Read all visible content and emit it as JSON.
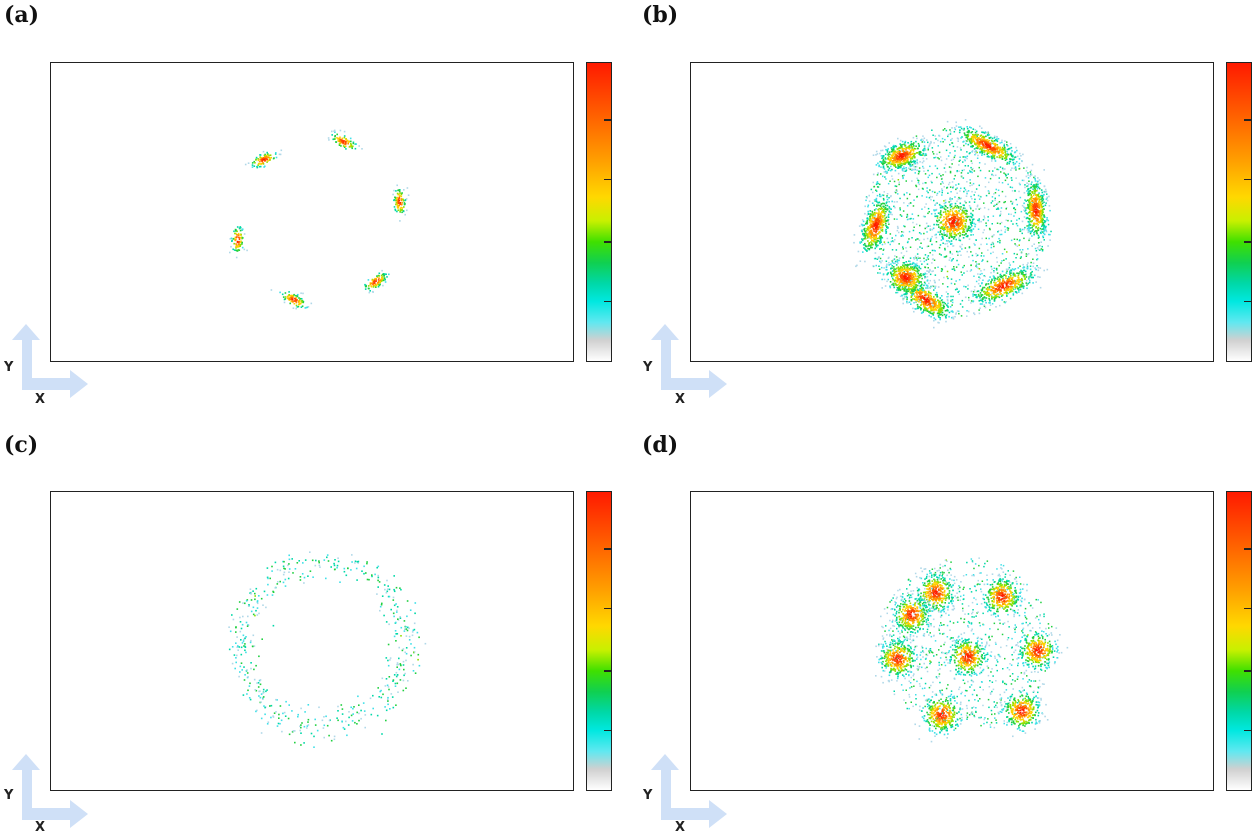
{
  "panels": [
    {
      "label": "(a)",
      "axis_y": "Y",
      "axis_x": "X"
    },
    {
      "label": "(b)",
      "axis_y": "Y",
      "axis_x": "X"
    },
    {
      "label": "(c)",
      "axis_y": "Y",
      "axis_x": "X"
    },
    {
      "label": "(d)",
      "axis_y": "Y",
      "axis_x": "X"
    }
  ],
  "colors": {
    "colorbar_stops": [
      "#ff1a00",
      "#ff6a00",
      "#ffa000",
      "#ffd800",
      "#40e000",
      "#00d8a8",
      "#00e8e0",
      "#d0d0d0",
      "#ffffff"
    ],
    "axes_arrow": "#cfe0f7"
  },
  "chart_data": [
    {
      "type": "heatmap",
      "panel": "(a)",
      "title": "",
      "xlabel": "X",
      "ylabel": "Y",
      "pattern": "ring of 6 compact density clusters",
      "cluster_count": 6,
      "colorbar": true
    },
    {
      "type": "heatmap",
      "panel": "(b)",
      "title": "",
      "xlabel": "X",
      "ylabel": "Y",
      "pattern": "ring of 7 high-density elongated clusters with central cluster and diffuse background",
      "cluster_count": 8,
      "colorbar": true
    },
    {
      "type": "heatmap",
      "panel": "(c)",
      "title": "",
      "xlabel": "X",
      "ylabel": "Y",
      "pattern": "sparse diffuse ring, no dense clusters",
      "cluster_count": 0,
      "colorbar": true
    },
    {
      "type": "heatmap",
      "panel": "(d)",
      "title": "",
      "xlabel": "X",
      "ylabel": "Y",
      "pattern": "ring of 7 dense clusters with central cluster",
      "cluster_count": 8,
      "colorbar": true
    }
  ]
}
